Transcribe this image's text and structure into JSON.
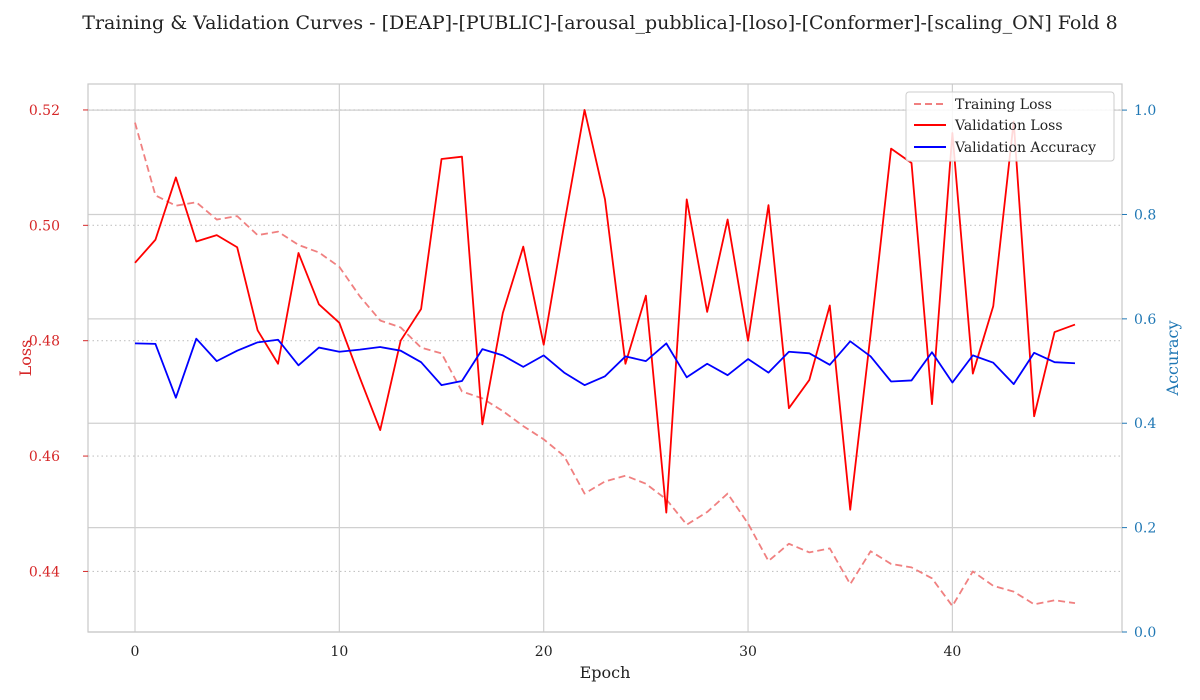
{
  "chart_data": {
    "type": "line",
    "title": "Training & Validation Curves - [DEAP]-[PUBLIC]-[arousal_pubblica]-[loso]-[Conformer]-[scaling_ON] Fold 8",
    "xlabel": "Epoch",
    "ylabel_left": "Loss",
    "ylabel_right": "Accuracy",
    "xlim": [
      -2.3,
      48.3
    ],
    "ylim_left": [
      0.4295,
      0.5245
    ],
    "ylim_right": [
      0.0,
      1.05
    ],
    "xticks": [
      0,
      10,
      20,
      30,
      40
    ],
    "yticks_left": [
      0.44,
      0.46,
      0.48,
      0.5,
      0.52
    ],
    "yticks_left_labels": [
      "0.44",
      "0.46",
      "0.48",
      "0.50",
      "0.52"
    ],
    "yticks_right": [
      0.0,
      0.2,
      0.4,
      0.6,
      0.8,
      1.0
    ],
    "yticks_right_labels": [
      "0.0",
      "0.2",
      "0.4",
      "0.6",
      "0.8",
      "1.0"
    ],
    "grid": true,
    "legend_position": "upper-right",
    "colors": {
      "left_axis": "#d62728",
      "right_axis": "#1f77b4",
      "train": "#f08080",
      "val_loss": "#ff0000",
      "val_acc": "#0000ff"
    },
    "series": [
      {
        "name": "Training Loss",
        "axis": "left",
        "style": "dashed",
        "values": [
          0.5178,
          0.5052,
          0.5034,
          0.504,
          0.501,
          0.5016,
          0.4983,
          0.4989,
          0.4966,
          0.4953,
          0.4928,
          0.4877,
          0.4835,
          0.4823,
          0.4788,
          0.4778,
          0.4712,
          0.47,
          0.4678,
          0.4652,
          0.4629,
          0.46,
          0.4535,
          0.4556,
          0.4566,
          0.4552,
          0.4525,
          0.4481,
          0.4503,
          0.4535,
          0.4483,
          0.4418,
          0.4448,
          0.4433,
          0.444,
          0.4378,
          0.4435,
          0.4413,
          0.4407,
          0.4388,
          0.434,
          0.44,
          0.4375,
          0.4365,
          0.4343,
          0.435,
          0.4345
        ]
      },
      {
        "name": "Validation Loss",
        "axis": "left",
        "style": "solid",
        "values": [
          0.4935,
          0.4975,
          0.5083,
          0.4972,
          0.4983,
          0.4962,
          0.4818,
          0.476,
          0.4952,
          0.4863,
          0.4831,
          0.4736,
          0.4645,
          0.48,
          0.4855,
          0.5115,
          0.5119,
          0.4655,
          0.4848,
          0.4963,
          0.4793,
          0.5001,
          0.52,
          0.5045,
          0.476,
          0.4878,
          0.4502,
          0.5045,
          0.485,
          0.501,
          0.48,
          0.5035,
          0.4683,
          0.4732,
          0.4861,
          0.4507,
          0.4812,
          0.5133,
          0.5108,
          0.469,
          0.516,
          0.4743,
          0.486,
          0.518,
          0.4669,
          0.4815,
          0.4828
        ]
      },
      {
        "name": "Validation Accuracy",
        "axis": "right",
        "style": "solid",
        "values": [
          0.553,
          0.552,
          0.449,
          0.562,
          0.519,
          0.539,
          0.555,
          0.56,
          0.511,
          0.545,
          0.537,
          0.541,
          0.546,
          0.539,
          0.517,
          0.473,
          0.481,
          0.542,
          0.53,
          0.508,
          0.53,
          0.497,
          0.473,
          0.49,
          0.528,
          0.519,
          0.553,
          0.488,
          0.514,
          0.492,
          0.523,
          0.497,
          0.537,
          0.534,
          0.512,
          0.557,
          0.528,
          0.48,
          0.482,
          0.536,
          0.478,
          0.53,
          0.516,
          0.475,
          0.535,
          0.517,
          0.515
        ]
      }
    ]
  }
}
